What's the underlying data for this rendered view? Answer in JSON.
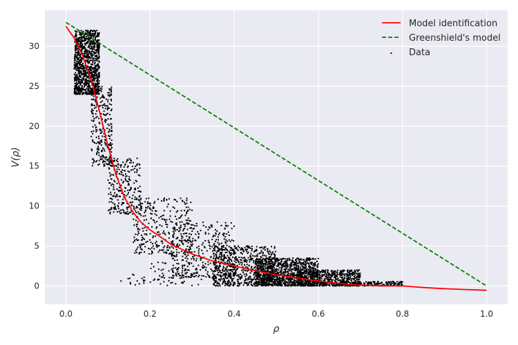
{
  "chart_data": {
    "type": "scatter",
    "title": "",
    "xlabel": "ρ",
    "ylabel": "V(ρ)",
    "xlim": [
      -0.05,
      1.05
    ],
    "ylim": [
      -2.3,
      34.5
    ],
    "xticks": [
      0.0,
      0.2,
      0.4,
      0.6,
      0.8,
      1.0
    ],
    "xtick_labels": [
      "0.0",
      "0.2",
      "0.4",
      "0.6",
      "0.8",
      "1.0"
    ],
    "yticks": [
      0,
      5,
      10,
      15,
      20,
      25,
      30
    ],
    "ytick_labels": [
      "0",
      "5",
      "10",
      "15",
      "20",
      "25",
      "30"
    ],
    "grid": true,
    "legend_position": "top-right",
    "background": "#eaeaf2",
    "series": [
      {
        "name": "Model identification",
        "kind": "line",
        "color": "#ff0000",
        "style": "solid",
        "x": [
          0.0,
          0.02,
          0.04,
          0.06,
          0.08,
          0.1,
          0.12,
          0.14,
          0.16,
          0.18,
          0.2,
          0.22,
          0.25,
          0.3,
          0.35,
          0.4,
          0.45,
          0.5,
          0.55,
          0.6,
          0.65,
          0.7,
          0.75,
          0.8,
          0.85,
          0.9,
          0.95,
          1.0
        ],
        "y": [
          32.5,
          31.0,
          28.8,
          25.8,
          21.8,
          17.5,
          13.8,
          11.0,
          9.2,
          7.9,
          7.0,
          6.3,
          5.2,
          4.0,
          3.1,
          2.5,
          1.9,
          1.4,
          1.0,
          0.6,
          0.3,
          0.1,
          0.0,
          0.0,
          -0.2,
          -0.35,
          -0.45,
          -0.55
        ]
      },
      {
        "name": "Greenshield's model",
        "kind": "line",
        "color": "#008000",
        "style": "dashed",
        "x": [
          0.0,
          1.0
        ],
        "y": [
          33.0,
          0.0
        ]
      },
      {
        "name": "Data",
        "kind": "scatter",
        "color": "#000000",
        "clusters": [
          {
            "x_range": [
              0.02,
              0.08
            ],
            "y_range": [
              24,
              32
            ],
            "count": 1100
          },
          {
            "x_range": [
              0.06,
              0.11
            ],
            "y_range": [
              15,
              25
            ],
            "count": 280
          },
          {
            "x_range": [
              0.1,
              0.18
            ],
            "y_range": [
              9,
              16
            ],
            "count": 260
          },
          {
            "x_range": [
              0.16,
              0.3
            ],
            "y_range": [
              4,
              11
            ],
            "count": 320
          },
          {
            "x_range": [
              0.25,
              0.4
            ],
            "y_range": [
              1,
              8
            ],
            "count": 380
          },
          {
            "x_range": [
              0.35,
              0.5
            ],
            "y_range": [
              0,
              5
            ],
            "count": 650
          },
          {
            "x_range": [
              0.45,
              0.6
            ],
            "y_range": [
              0,
              3.5
            ],
            "count": 1100
          },
          {
            "x_range": [
              0.55,
              0.7
            ],
            "y_range": [
              0,
              2
            ],
            "count": 600
          },
          {
            "x_range": [
              0.65,
              0.8
            ],
            "y_range": [
              0,
              0.6
            ],
            "count": 200
          },
          {
            "x_range": [
              0.13,
              0.25
            ],
            "y_range": [
              0,
              1.5
            ],
            "count": 30
          },
          {
            "x_range": [
              0.2,
              0.4
            ],
            "y_range": [
              0,
              3
            ],
            "count": 60
          }
        ]
      }
    ]
  }
}
